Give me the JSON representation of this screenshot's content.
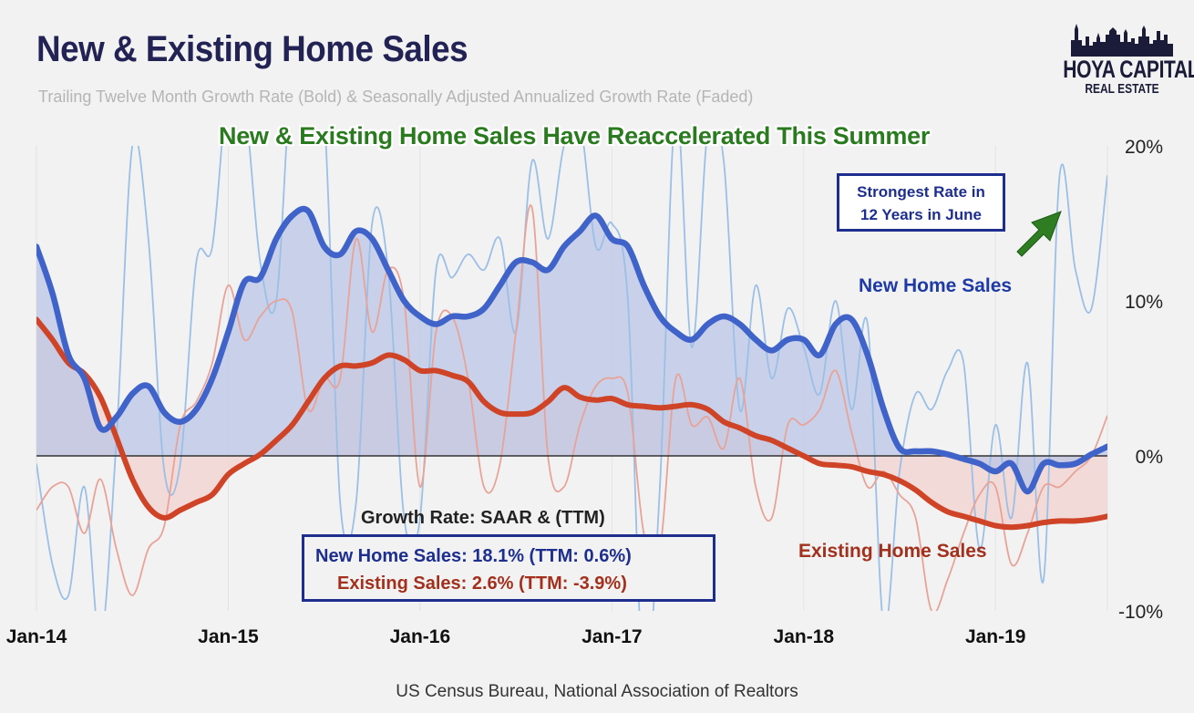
{
  "title": "New & Existing Home Sales",
  "subtitle": "Trailing Twelve Month Growth Rate (Bold) & Seasonally Adjusted Annualized Growth Rate (Faded)",
  "headline": "New & Existing Home Sales Have Reaccelerated This Summer",
  "logo": {
    "main": "HOYA CAPITAL",
    "sub": "REAL ESTATE"
  },
  "callout": {
    "line1": "Strongest Rate in",
    "line2": "12 Years in June"
  },
  "legend": {
    "heading": "Growth Rate: SAAR & (TTM)",
    "new": "New Home Sales: 18.1% (TTM: 0.6%)",
    "existing": "Existing Sales: 2.6% (TTM: -3.9%)"
  },
  "source": "US Census Bureau, National Association of Realtors",
  "colors": {
    "new_bold": "#3f63c9",
    "new_faded": "#9bbfe6",
    "new_fill": "#b9c6e6",
    "existing_bold": "#cf4427",
    "existing_faded": "#e8a398",
    "existing_fill": "#f1d6d2",
    "headline": "#2a7a1f"
  },
  "chart_data": {
    "type": "line",
    "x_tick_labels": [
      "Jan-14",
      "Jan-15",
      "Jan-16",
      "Jan-17",
      "Jan-18",
      "Jan-19"
    ],
    "y_tick_labels": [
      "20%",
      "10%",
      "0%",
      "-10%"
    ],
    "y_ticks": [
      20,
      10,
      0,
      -10
    ],
    "ylim": [
      -10,
      20
    ],
    "x_range_months": [
      0,
      67
    ],
    "grid": "vertical at January of each year",
    "series": [
      {
        "name": "New Home Sales",
        "style": "bold",
        "label": "New Home Sales",
        "x": [
          0,
          1,
          2,
          3,
          4,
          5,
          6,
          7,
          8,
          9,
          10,
          11,
          12,
          13,
          14,
          15,
          16,
          17,
          18,
          19,
          20,
          21,
          22,
          23,
          24,
          25,
          26,
          27,
          28,
          29,
          30,
          31,
          32,
          33,
          34,
          35,
          36,
          37,
          38,
          39,
          40,
          41,
          42,
          43,
          44,
          45,
          46,
          47,
          48,
          49,
          50,
          51,
          52,
          53,
          54,
          55,
          56,
          57,
          58,
          59,
          60,
          61,
          62,
          63,
          64,
          65,
          66,
          67
        ],
        "y": [
          13.5,
          10.5,
          6.5,
          5.0,
          1.8,
          2.5,
          4.0,
          4.5,
          2.8,
          2.2,
          3.0,
          5.0,
          8.0,
          11.2,
          11.5,
          14.0,
          15.5,
          15.8,
          13.5,
          13.0,
          14.5,
          14.0,
          12.0,
          10.0,
          9.0,
          8.5,
          9.0,
          9.0,
          9.5,
          11.0,
          12.5,
          12.5,
          12.0,
          13.5,
          14.5,
          15.5,
          14.0,
          13.5,
          11.0,
          9.0,
          8.0,
          7.5,
          8.5,
          9.0,
          8.5,
          7.5,
          6.8,
          7.5,
          7.5,
          6.5,
          8.5,
          8.8,
          6.5,
          3.0,
          0.5,
          0.3,
          0.3,
          0.1,
          -0.2,
          -0.5,
          -1.0,
          -0.5,
          -2.3,
          -0.5,
          -0.6,
          -0.5,
          0.1,
          0.6
        ]
      },
      {
        "name": "Existing Home Sales",
        "style": "bold",
        "label": "Existing Home Sales",
        "x": [
          0,
          1,
          2,
          3,
          4,
          5,
          6,
          7,
          8,
          9,
          10,
          11,
          12,
          13,
          14,
          15,
          16,
          17,
          18,
          19,
          20,
          21,
          22,
          23,
          24,
          25,
          26,
          27,
          28,
          29,
          30,
          31,
          32,
          33,
          34,
          35,
          36,
          37,
          38,
          39,
          40,
          41,
          42,
          43,
          44,
          45,
          46,
          47,
          48,
          49,
          50,
          51,
          52,
          53,
          54,
          55,
          56,
          57,
          58,
          59,
          60,
          61,
          62,
          63,
          64,
          65,
          66,
          67
        ],
        "y": [
          8.8,
          7.5,
          6.0,
          5.3,
          3.8,
          1.2,
          -1.5,
          -3.3,
          -4.0,
          -3.5,
          -3.0,
          -2.5,
          -1.2,
          -0.5,
          0.1,
          1.0,
          2.0,
          3.5,
          5.0,
          5.8,
          5.8,
          6.0,
          6.5,
          6.2,
          5.5,
          5.5,
          5.2,
          4.8,
          3.5,
          2.8,
          2.7,
          2.8,
          3.5,
          4.4,
          3.8,
          3.6,
          3.7,
          3.3,
          3.2,
          3.1,
          3.2,
          3.3,
          3.0,
          2.2,
          1.8,
          1.3,
          1.0,
          0.5,
          0.0,
          -0.5,
          -0.6,
          -0.7,
          -1.0,
          -1.2,
          -1.6,
          -2.2,
          -3.0,
          -3.6,
          -3.9,
          -4.2,
          -4.5,
          -4.6,
          -4.5,
          -4.3,
          -4.2,
          -4.2,
          -4.1,
          -3.9
        ]
      },
      {
        "name": "New Home Sales",
        "style": "faded",
        "x": [
          0,
          1,
          2,
          3,
          4,
          5,
          6,
          7,
          8,
          9,
          10,
          11,
          12,
          13,
          14,
          15,
          16,
          17,
          18,
          19,
          20,
          21,
          22,
          23,
          24,
          25,
          26,
          27,
          28,
          29,
          30,
          31,
          32,
          33,
          34,
          35,
          36,
          37,
          38,
          39,
          40,
          41,
          42,
          43,
          44,
          45,
          46,
          47,
          48,
          49,
          50,
          51,
          52,
          53,
          54,
          55,
          56,
          57,
          58,
          59,
          60,
          61,
          62,
          63,
          64,
          65,
          66,
          67
        ],
        "y": [
          -0.5,
          -7,
          -9,
          -2,
          -12,
          1,
          20,
          14,
          -1,
          -0.5,
          12.5,
          13.5,
          24,
          23,
          12.5,
          10,
          25,
          22,
          22,
          -3,
          -3,
          15,
          12,
          -4,
          -4,
          12,
          11.5,
          13,
          12,
          14,
          8,
          19,
          14,
          20,
          21.5,
          13.5,
          15,
          10,
          -15,
          -2,
          22.5,
          7,
          21,
          19,
          3,
          11,
          5,
          9.5,
          7,
          4,
          10,
          3,
          8.5,
          -11,
          -1,
          4,
          3,
          5.5,
          6,
          -6,
          2,
          -4,
          6,
          -8,
          18,
          12,
          9.5,
          18.1
        ]
      },
      {
        "name": "Existing Home Sales",
        "style": "faded",
        "x": [
          0,
          1,
          2,
          3,
          4,
          5,
          6,
          7,
          8,
          9,
          10,
          11,
          12,
          13,
          14,
          15,
          16,
          17,
          18,
          19,
          20,
          21,
          22,
          23,
          24,
          25,
          26,
          27,
          28,
          29,
          30,
          31,
          32,
          33,
          34,
          35,
          36,
          37,
          38,
          39,
          40,
          41,
          42,
          43,
          44,
          45,
          46,
          47,
          48,
          49,
          50,
          51,
          52,
          53,
          54,
          55,
          56,
          57,
          58,
          59,
          60,
          61,
          62,
          63,
          64,
          65,
          66,
          67
        ],
        "y": [
          -3.5,
          -2,
          -2,
          -5,
          -1.5,
          -6,
          -9,
          -6,
          -4.5,
          2,
          3.5,
          6,
          11,
          7.5,
          9,
          10,
          9.3,
          3,
          5,
          5,
          14,
          8,
          12,
          10,
          -2,
          8,
          9,
          5,
          -2,
          -0.5,
          8,
          16,
          0,
          -2,
          2,
          4.5,
          5,
          4,
          -5,
          -6,
          5,
          2,
          2.5,
          0.5,
          5,
          -2,
          -4,
          2,
          2,
          3,
          5.5,
          1.5,
          -2,
          -1,
          -2.5,
          -4,
          -10,
          -8,
          -5,
          -2.5,
          -2,
          -7,
          -5,
          -2,
          -2,
          -1,
          0,
          2.6
        ]
      }
    ]
  }
}
